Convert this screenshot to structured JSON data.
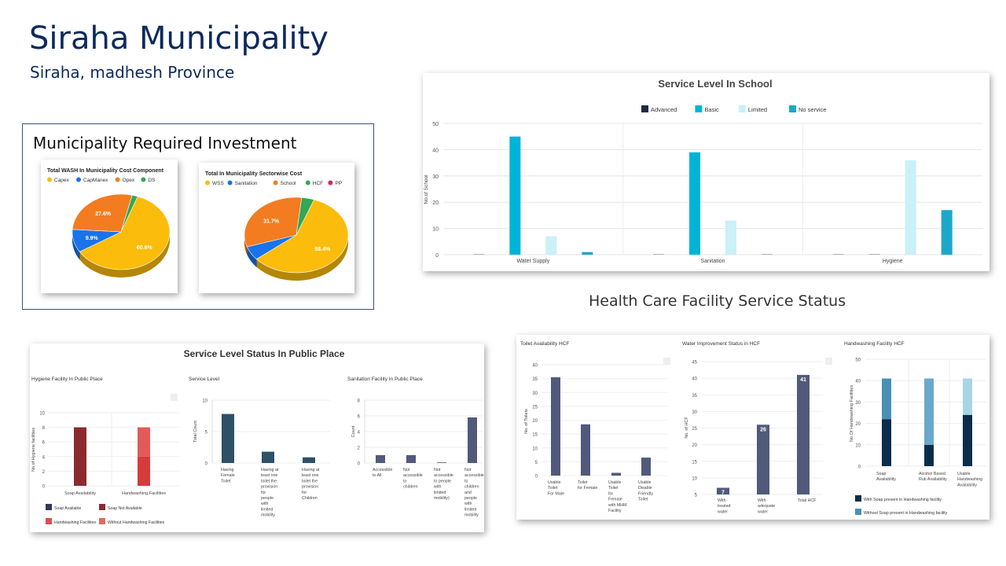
{
  "header": {
    "title": "Siraha Municipality",
    "subtitle": "Siraha, madhesh Province"
  },
  "investment": {
    "title": "Municipality Required Investment"
  },
  "hcf": {
    "section_title": "Health Care Facility Service Status"
  },
  "colors": {
    "navy": "#1f2a44",
    "cyan": "#00b4d8",
    "lightcyan": "#caf0f8",
    "teal": "#1ca7c9",
    "slate": "#515a7a",
    "darkred": "#8b2a2f",
    "red": "#e04c4c",
    "darkteal": "#2e5168"
  },
  "chart_data": [
    {
      "id": "pie1",
      "type": "pie",
      "title": "Total WASH In Municipality Cost Component",
      "legend": [
        "Capex",
        "CapManex",
        "Opex",
        "DS"
      ],
      "colors": [
        "#fbbc0b",
        "#1a73e8",
        "#f47c20",
        "#34a853"
      ],
      "values": [
        60.6,
        9.9,
        27.6,
        1.9
      ],
      "labels": [
        "60.6%",
        "9.9%",
        "27.6%",
        ""
      ]
    },
    {
      "id": "pie2",
      "type": "pie",
      "title": "Total In Municipality Sectorwise Cost",
      "legend": [
        "WSS",
        "Sanitation",
        "School",
        "HCF",
        "PP"
      ],
      "colors": [
        "#fbbc0b",
        "#1a73e8",
        "#f47c20",
        "#34a853",
        "#e91e63"
      ],
      "values": [
        58.4,
        6.0,
        31.7,
        3.9,
        0
      ],
      "labels": [
        "58.4%",
        "",
        "31.7%",
        "",
        ""
      ]
    },
    {
      "id": "school",
      "type": "bar",
      "title": "Service Level In School",
      "ylabel": "No.of School",
      "ylim": [
        0,
        50
      ],
      "yticks": [
        0,
        10,
        20,
        30,
        40,
        50
      ],
      "categories": [
        "Water Supply",
        "Sanitation",
        "Hygiene"
      ],
      "series": [
        {
          "name": "Advanced",
          "color": "#1f2a44",
          "values": [
            0,
            0,
            0
          ]
        },
        {
          "name": "Basic",
          "color": "#00b4d8",
          "values": [
            45,
            39,
            0
          ]
        },
        {
          "name": "Limited",
          "color": "#caf0f8",
          "values": [
            7,
            13,
            36
          ]
        },
        {
          "name": "No service",
          "color": "#1ca7c9",
          "values": [
            1,
            0,
            17
          ]
        }
      ]
    },
    {
      "id": "pp",
      "type": "bar",
      "title": "Service Level Status In Public Place",
      "panels": [
        {
          "title": "Hygiene Facility In Public Place",
          "ylabel": "No.of Hygiene facilities",
          "yticks": [
            0,
            2,
            4,
            6,
            8,
            10
          ],
          "ylim": [
            0,
            10
          ],
          "categories": [
            "Soap Availability",
            "Handwashing Facilities"
          ],
          "bars": [
            {
              "segments": [
                {
                  "value": 8,
                  "color": "#8b2a2f"
                }
              ]
            },
            {
              "segments": [
                {
                  "value": 4,
                  "color": "#d63b3b"
                },
                {
                  "value": 4,
                  "color": "#e35a5a"
                }
              ]
            }
          ],
          "legend": [
            "Soap Available",
            "Soap Not Available",
            "Handwashing Facilities",
            "Without Handwashing Facilities"
          ],
          "legend_colors": [
            "#2e3a5c",
            "#8b2a2f",
            "#e04c4c",
            "#e8665f"
          ]
        },
        {
          "title": "Service Level",
          "ylabel": "Total Count",
          "yticks": [
            0,
            5,
            10
          ],
          "ylim": [
            0,
            10
          ],
          "categories": [
            "Having Female Toilet",
            "Having at least one toilet the provision for people with limited mobility",
            "Having at least one toilet the provision for Children"
          ],
          "values": [
            7.8,
            1.8,
            0.9
          ]
        },
        {
          "title": "Sanitation Facility In Public Place",
          "ylabel": "Count",
          "yticks": [
            0,
            2,
            4,
            6,
            8
          ],
          "ylim": [
            0,
            8
          ],
          "categories": [
            "Accessible to All",
            "Not accessible to children",
            "Not accessible to people with limited mobility)",
            "Not accessible to children and people with limited mobility"
          ],
          "values": [
            1,
            1,
            0.05,
            5.8
          ]
        }
      ]
    },
    {
      "id": "hcf",
      "type": "bar",
      "panels": [
        {
          "title": "Toilet Availability HCF",
          "ylabel": "No. of Toilets",
          "yticks": [
            0,
            5,
            10,
            15,
            20,
            25,
            30,
            35,
            40
          ],
          "ylim": [
            0,
            40
          ],
          "categories": [
            "Usable Toilet For Male",
            "Toilet for Female",
            "Usable Toilet for Female with MHM Facility",
            "Usable Disable Friendly Toilet"
          ],
          "values": [
            35.5,
            18.5,
            1,
            6.5
          ]
        },
        {
          "title": "Water Improvement Status in HCF",
          "ylabel": "No. of HCF",
          "yticks": [
            5,
            10,
            15,
            20,
            25,
            30,
            35,
            40,
            45
          ],
          "ylim": [
            5,
            45
          ],
          "categories": [
            "With treated water",
            "With adequate water",
            "Total HCF"
          ],
          "values": [
            7,
            26,
            41
          ],
          "data_labels": [
            "7",
            "26",
            "41"
          ]
        },
        {
          "title": "Handwashing Facility HCF",
          "ylabel": "No.Of Handwashing Facilities",
          "yticks": [
            0,
            10,
            20,
            30,
            40,
            50
          ],
          "ylim": [
            0,
            50
          ],
          "categories": [
            "Soap Availability",
            "Alcohol Based Rub Availability",
            "Usable Handwashing Availability"
          ],
          "stacks": [
            {
              "with": 22,
              "without": 19
            },
            {
              "with": 10,
              "without": 31
            },
            {
              "with": 24,
              "without": 17
            }
          ],
          "series_colors": [
            "#0b2d4a",
            "#4a90b4"
          ],
          "top_colors": [
            "#4a90b4",
            "#6aa9c9",
            "#a8d5e6"
          ],
          "legend": [
            "With Soap present in Handwashing facility",
            "Without Soap present in Handwashing facility"
          ]
        }
      ]
    }
  ]
}
